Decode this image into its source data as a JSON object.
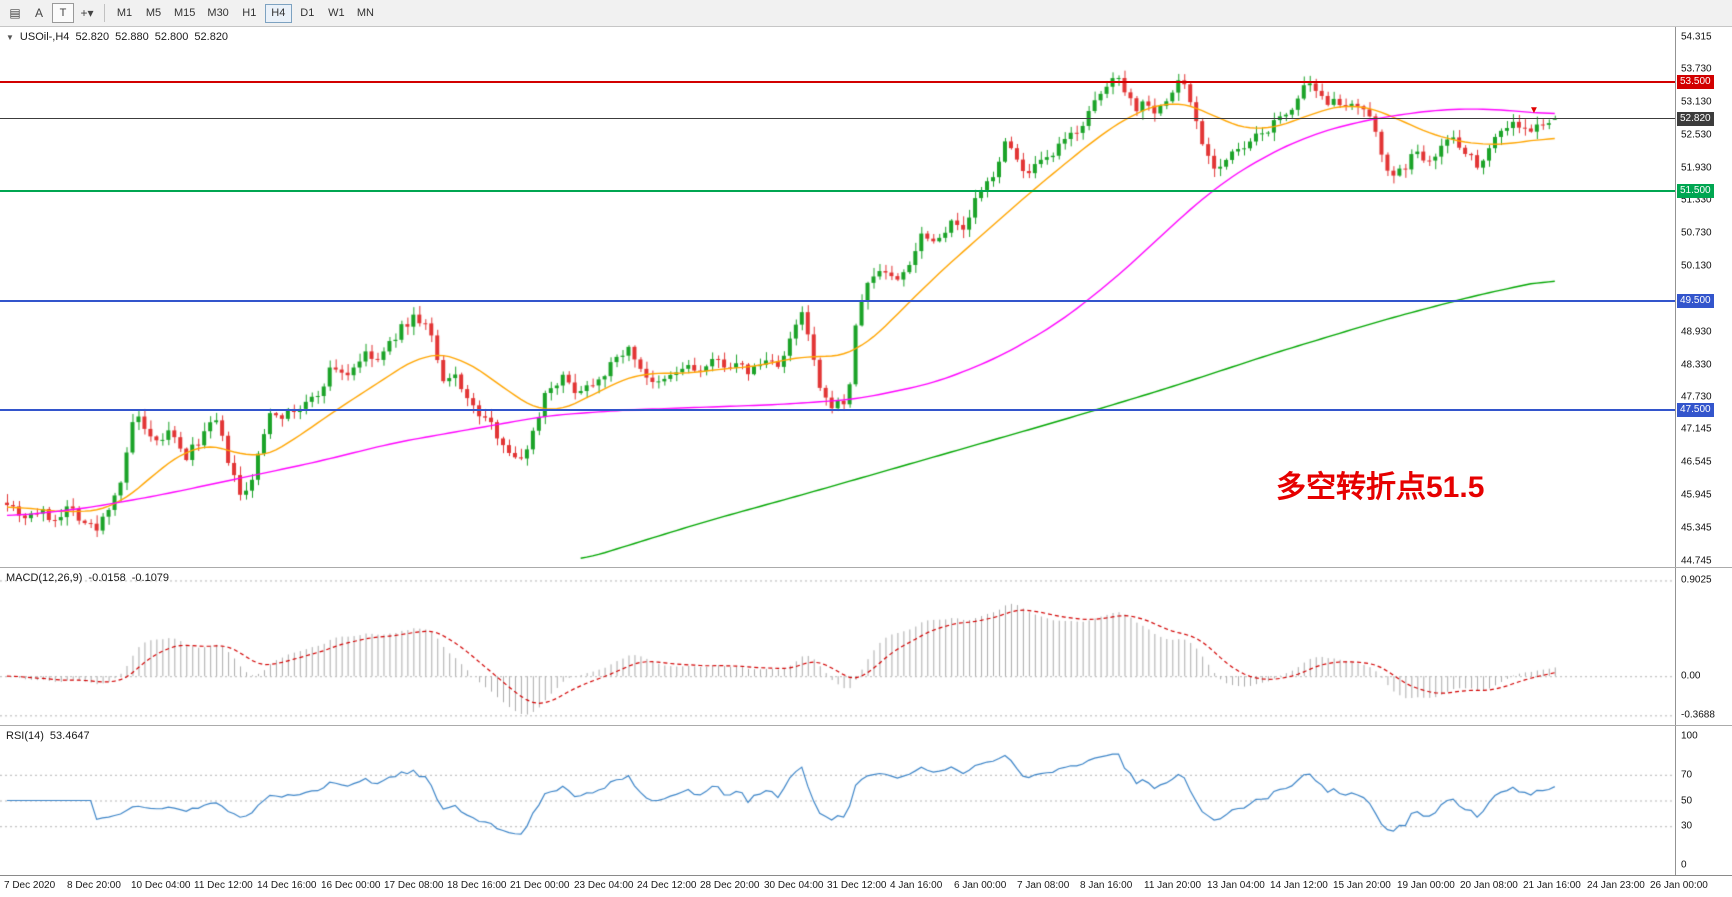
{
  "toolbar": {
    "left_buttons": [
      {
        "name": "chart-window-icon",
        "glyph": "▤",
        "boxed": false,
        "caret": ""
      },
      {
        "name": "text-a-button",
        "glyph": "A",
        "boxed": false,
        "caret": ""
      },
      {
        "name": "text-t-button",
        "glyph": "T",
        "boxed": true,
        "caret": ""
      },
      {
        "name": "crosshair-button",
        "glyph": "+",
        "boxed": false,
        "caret": "▾"
      }
    ],
    "timeframes": [
      "M1",
      "M5",
      "M15",
      "M30",
      "H1",
      "H4",
      "D1",
      "W1",
      "MN"
    ],
    "selected_timeframe": "H4"
  },
  "chart": {
    "collapse_icon": "▼",
    "header": {
      "symbol": "USOil-,H4",
      "open": "52.820",
      "high": "52.880",
      "low": "52.800",
      "close": "52.820"
    },
    "annotation": {
      "text": "多空转折点51.5",
      "color": "#e60000"
    },
    "axis_labels": [
      "54.315",
      "53.730",
      "53.130",
      "52.530",
      "51.930",
      "51.330",
      "50.730",
      "50.130",
      "49.530",
      "48.930",
      "48.330",
      "47.730",
      "47.145",
      "46.545",
      "45.945",
      "45.345",
      "44.745"
    ],
    "levels": [
      {
        "value": 53.5,
        "label": "53.500",
        "color": "#d20000",
        "width": 2,
        "type": "resistance"
      },
      {
        "value": 52.82,
        "label": "52.820",
        "color": "#3c3c3c",
        "width": 1,
        "type": "current"
      },
      {
        "value": 51.5,
        "label": "51.500",
        "color": "#00a651",
        "width": 2,
        "type": "pivot"
      },
      {
        "value": 49.5,
        "label": "49.500",
        "color": "#3355cc",
        "width": 2,
        "type": "support"
      },
      {
        "value": 47.5,
        "label": "47.500",
        "color": "#3355cc",
        "width": 2,
        "type": "support"
      }
    ],
    "colors": {
      "up": "#1ba328",
      "down": "#e23535",
      "ma_fast": "#ffa500",
      "ma_mid": "#ff00ff",
      "ma_slow": "#00a600"
    }
  },
  "chart_data": {
    "type": "candlestick",
    "symbol": "USOil",
    "timeframe": "H4",
    "bars": 260,
    "price_range": [
      44.745,
      54.315
    ],
    "last_ohlc": {
      "open": 52.82,
      "high": 52.88,
      "low": 52.8,
      "close": 52.82
    },
    "price_keypoints": [
      [
        0.0,
        45.85
      ],
      [
        0.01,
        45.55
      ],
      [
        0.02,
        45.65
      ],
      [
        0.03,
        45.5
      ],
      [
        0.04,
        45.75
      ],
      [
        0.05,
        45.45
      ],
      [
        0.058,
        45.3
      ],
      [
        0.065,
        45.7
      ],
      [
        0.075,
        46.3
      ],
      [
        0.083,
        47.55
      ],
      [
        0.088,
        47.1
      ],
      [
        0.095,
        46.85
      ],
      [
        0.105,
        47.1
      ],
      [
        0.115,
        46.6
      ],
      [
        0.125,
        47.0
      ],
      [
        0.135,
        47.3
      ],
      [
        0.145,
        46.4
      ],
      [
        0.152,
        45.8
      ],
      [
        0.16,
        46.4
      ],
      [
        0.17,
        47.5
      ],
      [
        0.18,
        47.4
      ],
      [
        0.19,
        47.55
      ],
      [
        0.2,
        47.75
      ],
      [
        0.21,
        48.3
      ],
      [
        0.22,
        48.15
      ],
      [
        0.23,
        48.5
      ],
      [
        0.24,
        48.4
      ],
      [
        0.252,
        48.9
      ],
      [
        0.262,
        49.2
      ],
      [
        0.272,
        49.05
      ],
      [
        0.282,
        47.95
      ],
      [
        0.29,
        48.15
      ],
      [
        0.3,
        47.55
      ],
      [
        0.31,
        47.3
      ],
      [
        0.32,
        46.95
      ],
      [
        0.33,
        46.5
      ],
      [
        0.34,
        47.1
      ],
      [
        0.348,
        47.85
      ],
      [
        0.358,
        48.1
      ],
      [
        0.368,
        47.85
      ],
      [
        0.378,
        48.0
      ],
      [
        0.39,
        48.3
      ],
      [
        0.4,
        48.65
      ],
      [
        0.408,
        48.35
      ],
      [
        0.418,
        47.9
      ],
      [
        0.428,
        48.1
      ],
      [
        0.438,
        48.3
      ],
      [
        0.448,
        48.2
      ],
      [
        0.458,
        48.4
      ],
      [
        0.47,
        48.3
      ],
      [
        0.48,
        48.2
      ],
      [
        0.49,
        48.4
      ],
      [
        0.5,
        48.35
      ],
      [
        0.508,
        48.9
      ],
      [
        0.514,
        49.3
      ],
      [
        0.52,
        48.5
      ],
      [
        0.527,
        47.65
      ],
      [
        0.535,
        47.6
      ],
      [
        0.543,
        47.65
      ],
      [
        0.55,
        49.4
      ],
      [
        0.557,
        49.85
      ],
      [
        0.565,
        50.1
      ],
      [
        0.575,
        49.85
      ],
      [
        0.585,
        50.3
      ],
      [
        0.592,
        50.8
      ],
      [
        0.6,
        50.55
      ],
      [
        0.61,
        51.0
      ],
      [
        0.617,
        50.7
      ],
      [
        0.625,
        51.3
      ],
      [
        0.635,
        51.7
      ],
      [
        0.645,
        52.35
      ],
      [
        0.652,
        52.2
      ],
      [
        0.658,
        51.7
      ],
      [
        0.665,
        51.95
      ],
      [
        0.672,
        52.05
      ],
      [
        0.68,
        52.3
      ],
      [
        0.688,
        52.55
      ],
      [
        0.695,
        52.75
      ],
      [
        0.702,
        53.05
      ],
      [
        0.71,
        53.4
      ],
      [
        0.718,
        53.65
      ],
      [
        0.724,
        53.25
      ],
      [
        0.73,
        53.0
      ],
      [
        0.736,
        53.2
      ],
      [
        0.742,
        52.95
      ],
      [
        0.75,
        53.15
      ],
      [
        0.758,
        53.6
      ],
      [
        0.764,
        53.2
      ],
      [
        0.77,
        52.6
      ],
      [
        0.776,
        52.15
      ],
      [
        0.782,
        51.9
      ],
      [
        0.79,
        52.15
      ],
      [
        0.798,
        52.25
      ],
      [
        0.806,
        52.45
      ],
      [
        0.815,
        52.65
      ],
      [
        0.824,
        52.85
      ],
      [
        0.832,
        53.1
      ],
      [
        0.84,
        53.45
      ],
      [
        0.846,
        53.25
      ],
      [
        0.852,
        53.1
      ],
      [
        0.858,
        53.3
      ],
      [
        0.864,
        52.95
      ],
      [
        0.872,
        53.05
      ],
      [
        0.878,
        52.9
      ],
      [
        0.885,
        52.55
      ],
      [
        0.89,
        52.05
      ],
      [
        0.896,
        51.7
      ],
      [
        0.904,
        52.0
      ],
      [
        0.91,
        52.2
      ],
      [
        0.918,
        52.1
      ],
      [
        0.926,
        52.3
      ],
      [
        0.934,
        52.5
      ],
      [
        0.942,
        52.25
      ],
      [
        0.95,
        51.95
      ],
      [
        0.958,
        52.35
      ],
      [
        0.966,
        52.65
      ],
      [
        0.974,
        52.75
      ],
      [
        0.984,
        52.55
      ],
      [
        0.992,
        52.75
      ],
      [
        1.0,
        52.82
      ]
    ],
    "ma_fast_keypoints": [
      [
        0.0,
        45.75
      ],
      [
        0.04,
        45.62
      ],
      [
        0.07,
        45.7
      ],
      [
        0.1,
        46.45
      ],
      [
        0.12,
        46.85
      ],
      [
        0.14,
        46.85
      ],
      [
        0.16,
        46.55
      ],
      [
        0.18,
        46.85
      ],
      [
        0.21,
        47.45
      ],
      [
        0.24,
        48.0
      ],
      [
        0.27,
        48.55
      ],
      [
        0.29,
        48.5
      ],
      [
        0.31,
        48.15
      ],
      [
        0.33,
        47.7
      ],
      [
        0.35,
        47.4
      ],
      [
        0.37,
        47.65
      ],
      [
        0.39,
        47.95
      ],
      [
        0.41,
        48.2
      ],
      [
        0.43,
        48.15
      ],
      [
        0.45,
        48.2
      ],
      [
        0.47,
        48.28
      ],
      [
        0.49,
        48.3
      ],
      [
        0.51,
        48.5
      ],
      [
        0.53,
        48.45
      ],
      [
        0.55,
        48.55
      ],
      [
        0.57,
        49.1
      ],
      [
        0.6,
        49.95
      ],
      [
        0.63,
        50.7
      ],
      [
        0.66,
        51.45
      ],
      [
        0.69,
        52.15
      ],
      [
        0.71,
        52.6
      ],
      [
        0.73,
        52.95
      ],
      [
        0.75,
        53.15
      ],
      [
        0.77,
        53.05
      ],
      [
        0.79,
        52.7
      ],
      [
        0.81,
        52.6
      ],
      [
        0.83,
        52.75
      ],
      [
        0.85,
        53.0
      ],
      [
        0.87,
        53.1
      ],
      [
        0.89,
        52.95
      ],
      [
        0.91,
        52.65
      ],
      [
        0.93,
        52.45
      ],
      [
        0.95,
        52.35
      ],
      [
        0.97,
        52.35
      ],
      [
        1.0,
        52.5
      ]
    ],
    "ma_mid_keypoints": [
      [
        0.0,
        45.55
      ],
      [
        0.05,
        45.7
      ],
      [
        0.1,
        45.95
      ],
      [
        0.15,
        46.25
      ],
      [
        0.2,
        46.55
      ],
      [
        0.25,
        46.9
      ],
      [
        0.3,
        47.15
      ],
      [
        0.35,
        47.4
      ],
      [
        0.4,
        47.5
      ],
      [
        0.45,
        47.55
      ],
      [
        0.5,
        47.6
      ],
      [
        0.55,
        47.7
      ],
      [
        0.6,
        48.0
      ],
      [
        0.64,
        48.45
      ],
      [
        0.68,
        49.1
      ],
      [
        0.72,
        50.0
      ],
      [
        0.75,
        50.8
      ],
      [
        0.78,
        51.55
      ],
      [
        0.81,
        52.1
      ],
      [
        0.84,
        52.5
      ],
      [
        0.87,
        52.75
      ],
      [
        0.9,
        52.9
      ],
      [
        0.93,
        53.0
      ],
      [
        0.96,
        53.0
      ],
      [
        1.0,
        52.9
      ]
    ],
    "ma_slow_keypoints": [
      [
        0.37,
        44.75
      ],
      [
        0.45,
        45.45
      ],
      [
        0.52,
        46.0
      ],
      [
        0.6,
        46.65
      ],
      [
        0.68,
        47.3
      ],
      [
        0.75,
        47.9
      ],
      [
        0.82,
        48.55
      ],
      [
        0.89,
        49.15
      ],
      [
        0.95,
        49.6
      ],
      [
        1.0,
        49.9
      ]
    ]
  },
  "macd": {
    "label": "MACD(12,26,9)",
    "value_main": "-0.0158",
    "value_signal": "-0.1079",
    "axis_labels": [
      "0.9025",
      "0.00",
      "-0.3688"
    ],
    "colors": {
      "histogram": "#ababab",
      "signal": "#d20000"
    }
  },
  "rsi": {
    "label": "RSI(14)",
    "value": "53.4647",
    "axis_labels": [
      "100",
      "70",
      "50",
      "30",
      "0"
    ],
    "dotted_levels": [
      70,
      50,
      30
    ],
    "color": "#3d85c8"
  },
  "time_axis": [
    "7 Dec 2020",
    "8 Dec 20:00",
    "10 Dec 04:00",
    "11 Dec 12:00",
    "14 Dec 16:00",
    "16 Dec 00:00",
    "17 Dec 08:00",
    "18 Dec 16:00",
    "21 Dec 00:00",
    "23 Dec 04:00",
    "24 Dec 12:00",
    "28 Dec 20:00",
    "30 Dec 04:00",
    "31 Dec 12:00",
    "4 Jan 16:00",
    "6 Jan 00:00",
    "7 Jan 08:00",
    "8 Jan 16:00",
    "11 Jan 20:00",
    "13 Jan 04:00",
    "14 Jan 12:00",
    "15 Jan 20:00",
    "19 Jan 00:00",
    "20 Jan 08:00",
    "21 Jan 16:00",
    "24 Jan 23:00",
    "26 Jan 00:00"
  ],
  "marker": {
    "glyph": "▼",
    "color": "#e00000",
    "t": 0.985,
    "price": 52.97
  }
}
